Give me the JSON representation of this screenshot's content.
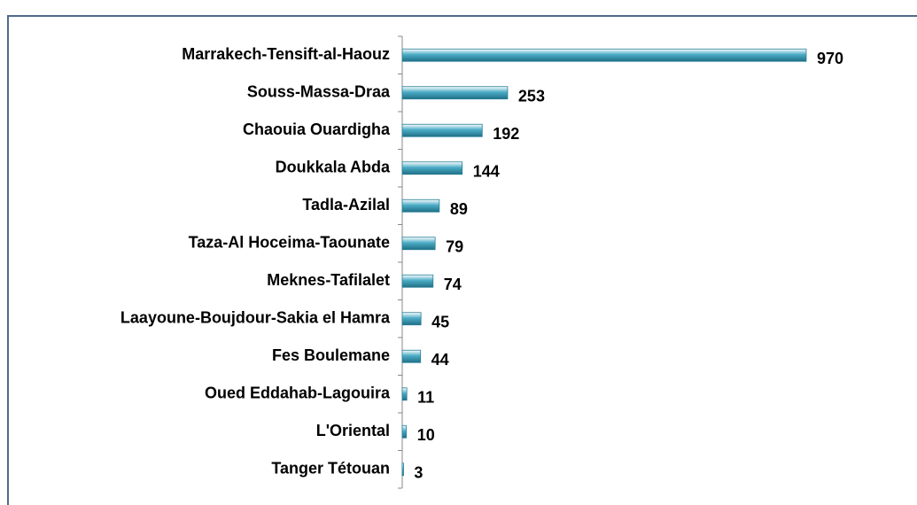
{
  "chart_data": {
    "type": "bar",
    "orientation": "horizontal",
    "categories": [
      "Marrakech-Tensift-al-Haouz",
      "Souss-Massa-Draa",
      "Chaouia Ouardigha",
      "Doukkala Abda",
      "Tadla-Azilal",
      "Taza-Al Hoceima-Taounate",
      "Meknes-Tafilalet",
      "Laayoune-Boujdour-Sakia el Hamra",
      "Fes Boulemane",
      "Oued Eddahab-Lagouira",
      "L'Oriental",
      "Tanger Tétouan"
    ],
    "values": [
      970,
      253,
      192,
      144,
      89,
      79,
      74,
      45,
      44,
      11,
      10,
      3
    ],
    "color": "#4bacc6"
  }
}
